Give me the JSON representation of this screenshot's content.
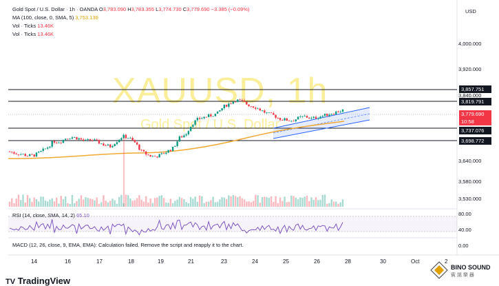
{
  "header": {
    "symbol": "Gold Spot / U.S. Dollar · 1h · OANDA",
    "open_label": "O",
    "open": "3,783.090",
    "high_label": "H",
    "high": "3,783.355",
    "low_label": "L",
    "low": "3,774.730",
    "close_label": "C",
    "close": "3,779.690",
    "change": "−3.385 (−0.09%)",
    "currency": "USD"
  },
  "indicators": {
    "ma_label": "MA (100, close, 0, SMA, 5)",
    "ma_value": "3,753.136",
    "vol1_label": "Vol · Ticks",
    "vol1_value": "13.46K",
    "vol2_label": "Vol · Ticks",
    "vol2_value": "13.46K",
    "rsi_label": "RSI (14, close, SMA, 14, 2)",
    "rsi_value": "65.10",
    "macd_text": "MACD (12, 26, close, 9, EMA, EMA): Calculation failed. Remove the script and reapply it to the chart."
  },
  "watermark": {
    "symbol": "XAUUSD, 1h",
    "name": "Gold Spot / U.S. Dollar"
  },
  "price_axis": [
    "4,000.000",
    "3,920.000",
    "3,840.000",
    "3,640.000",
    "3,580.000",
    "3,530.000"
  ],
  "price_tags": {
    "level1": "3,857.751",
    "level2": "3,819.791",
    "current": "3,779.690",
    "countdown": "10:58",
    "level3": "3,737.076",
    "level4": "3,698.772"
  },
  "rsi_axis": [
    "80.00",
    "40.00"
  ],
  "macd_axis": [
    "0.00"
  ],
  "x_axis": [
    "14",
    "16",
    "17",
    "18",
    "19",
    "21",
    "23",
    "24",
    "25",
    "26",
    "28",
    "30",
    "Oct",
    "2"
  ],
  "brand": "TradingView",
  "corner_logo": {
    "name": "BINO SOUND",
    "sub": "賓 諾 樂 器"
  },
  "colors": {
    "up": "#089981",
    "down": "#f23645",
    "ma": "#f0a830",
    "channel": "#2962ff",
    "rsi": "#7e57c2",
    "watermark": "#f6e14a"
  },
  "chart_data": {
    "type": "candlestick",
    "title": "Gold Spot / U.S. Dollar · 1h · OANDA",
    "ylim": [
      3500,
      4020
    ],
    "close_path": [
      3660,
      3655,
      3652,
      3648,
      3650,
      3660,
      3672,
      3690,
      3688,
      3700,
      3702,
      3698,
      3690,
      3695,
      3688,
      3680,
      3675,
      3690,
      3705,
      3700,
      3685,
      3660,
      3650,
      3645,
      3650,
      3660,
      3670,
      3700,
      3710,
      3740,
      3755,
      3760,
      3765,
      3770,
      3790,
      3800,
      3810,
      3805,
      3795,
      3790,
      3780,
      3770,
      3765,
      3755,
      3752,
      3750,
      3758,
      3762,
      3756,
      3760,
      3765,
      3770,
      3775,
      3780
    ],
    "levels": [
      3857.751,
      3819.791,
      3737.076,
      3698.772
    ],
    "current": 3779.69,
    "ma": 3753.136,
    "rsi": 65.1
  }
}
